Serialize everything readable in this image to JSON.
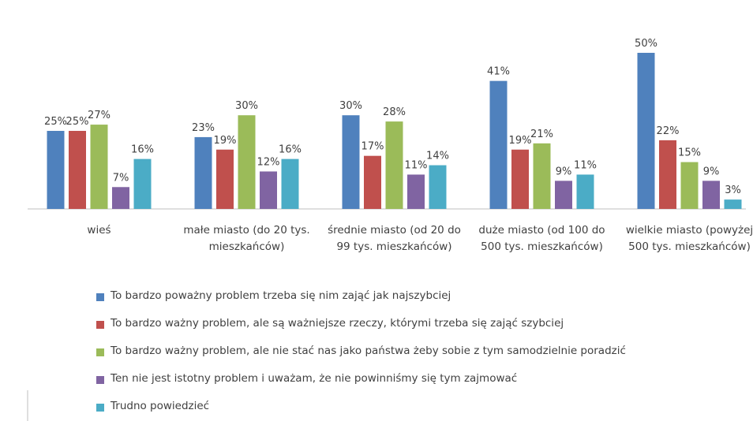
{
  "chart_data": {
    "type": "bar",
    "categories": [
      "wieś",
      "małe miasto (do 20 tys. mieszkańców)",
      "średnie miasto (od 20 do 99 tys. mieszkańców)",
      "duże miasto (od 100 do 500 tys. mieszkańców)",
      "wielkie miasto (powyżej 500 tys. mieszkańców)"
    ],
    "series": [
      {
        "name": "To bardzo poważny problem trzeba się nim zająć jak najszybciej",
        "color": "#4f81bd",
        "values": [
          25,
          23,
          30,
          41,
          50
        ],
        "value_labels": [
          "25%",
          "23%",
          "30%",
          "41%",
          "50%"
        ]
      },
      {
        "name": "To bardzo ważny problem, ale są ważniejsze rzeczy, którymi trzeba się zająć szybciej",
        "color": "#c0504d",
        "values": [
          25,
          19,
          17,
          19,
          22
        ],
        "value_labels": [
          "25%",
          "19%",
          "17%",
          "19%",
          "22%"
        ]
      },
      {
        "name": "To bardzo ważny problem, ale nie stać nas jako państwa żeby sobie z tym samodzielnie poradzić",
        "color": "#9bbb59",
        "values": [
          27,
          30,
          28,
          21,
          15
        ],
        "value_labels": [
          "27%",
          "30%",
          "28%",
          "21%",
          "15%"
        ]
      },
      {
        "name": "Ten nie jest istotny problem i uważam, że nie powinniśmy się tym zajmować",
        "color": "#8064a2",
        "values": [
          7,
          12,
          11,
          9,
          9
        ],
        "value_labels": [
          "7%",
          "12%",
          "11%",
          "9%",
          "9%"
        ]
      },
      {
        "name": "Trudno powiedzieć",
        "color": "#4bacc6",
        "values": [
          16,
          16,
          14,
          11,
          3
        ],
        "value_labels": [
          "16%",
          "16%",
          "14%",
          "11%",
          "3%"
        ]
      }
    ]
  }
}
